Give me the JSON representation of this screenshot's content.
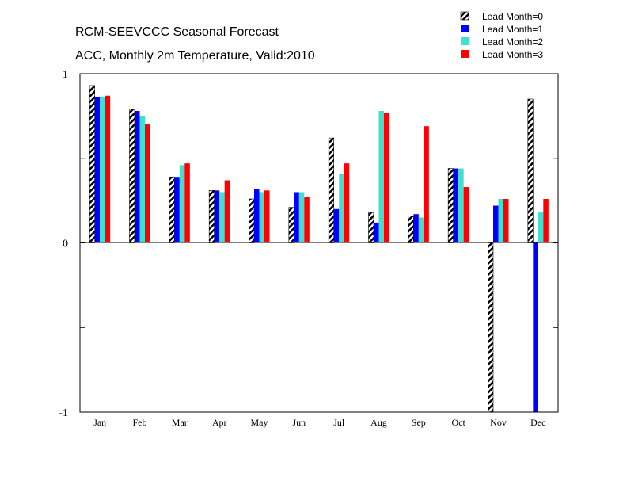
{
  "chart_data": {
    "type": "bar",
    "title": "RCM-SEEVCCC Seasonal Forecast",
    "subtitle": "ACC, Monthly 2m Temperature, Valid:2010",
    "xlabel": "",
    "ylabel": "",
    "ylim": [
      -1,
      1
    ],
    "yticks": [
      {
        "value": 1,
        "label": "1"
      },
      {
        "value": 0,
        "label": "0"
      },
      {
        "value": -1,
        "label": "-1"
      }
    ],
    "grid": false,
    "legend_position": "top-right",
    "categories": [
      "Jan",
      "Feb",
      "Mar",
      "Apr",
      "May",
      "Jun",
      "Jul",
      "Aug",
      "Sep",
      "Oct",
      "Nov",
      "Dec"
    ],
    "series": [
      {
        "name": "Lead Month=0",
        "color": "#000000",
        "pattern": "hatched",
        "values": [
          0.93,
          0.79,
          0.39,
          0.31,
          0.26,
          0.21,
          0.62,
          0.18,
          0.16,
          0.44,
          -1.0,
          0.85
        ]
      },
      {
        "name": "Lead Month=1",
        "color": "#0000ff",
        "pattern": "solid",
        "values": [
          0.86,
          0.78,
          0.39,
          0.31,
          0.32,
          0.3,
          0.2,
          0.12,
          0.17,
          0.44,
          0.22,
          -1.0
        ]
      },
      {
        "name": "Lead Month=2",
        "color": "#40e0d0",
        "pattern": "solid",
        "values": [
          0.86,
          0.75,
          0.46,
          0.3,
          0.3,
          0.3,
          0.41,
          0.78,
          0.15,
          0.44,
          0.26,
          0.18
        ]
      },
      {
        "name": "Lead Month=3",
        "color": "#ff0000",
        "pattern": "solid",
        "values": [
          0.87,
          0.7,
          0.47,
          0.37,
          0.31,
          0.27,
          0.47,
          0.77,
          0.69,
          0.33,
          0.26,
          0.26
        ]
      }
    ]
  }
}
